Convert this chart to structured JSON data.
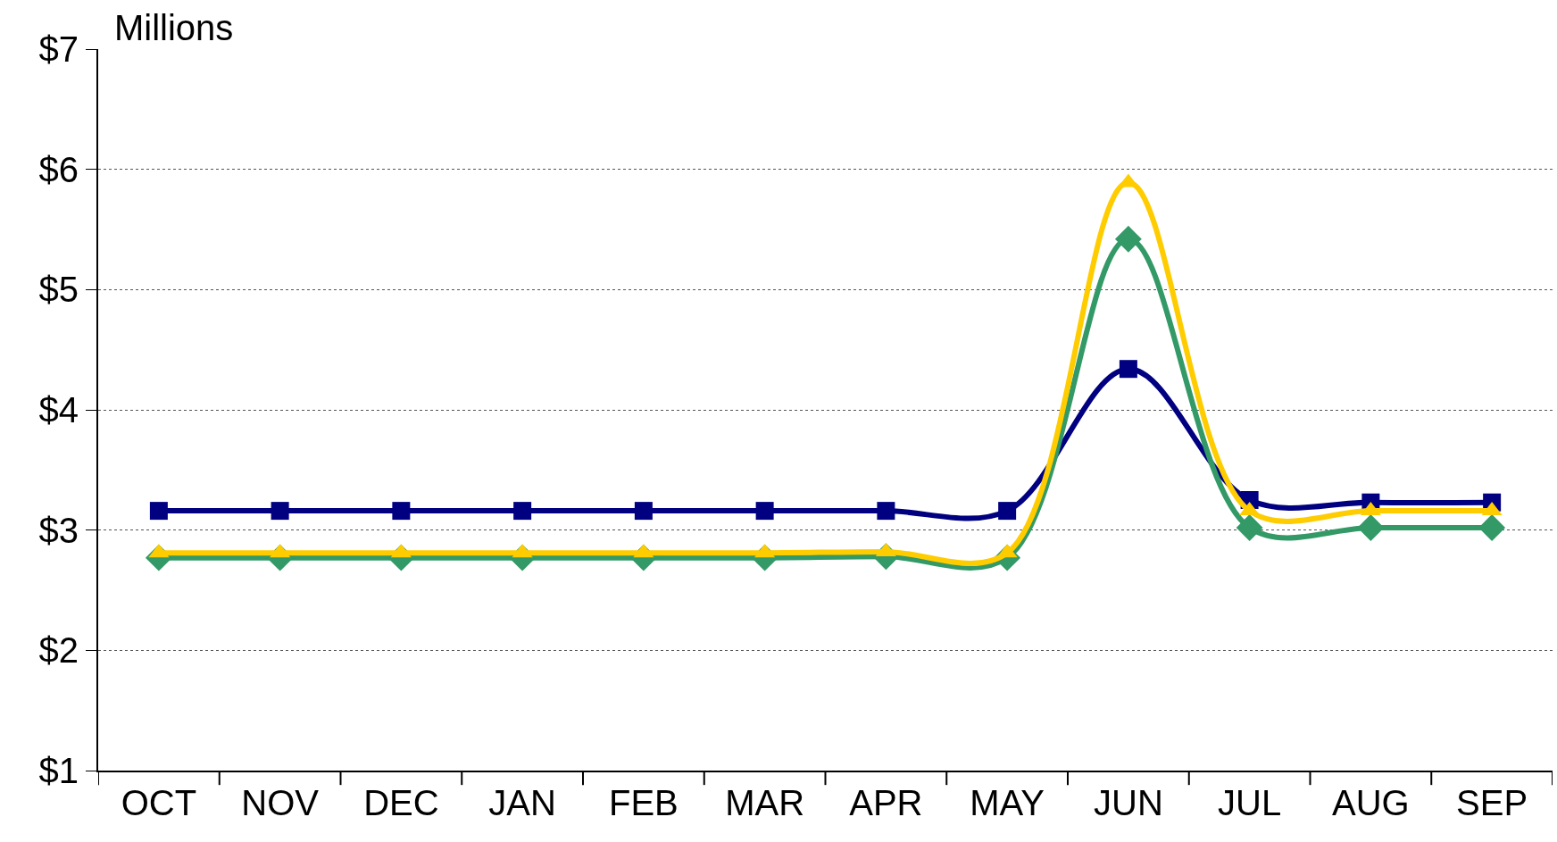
{
  "chart_data": {
    "type": "line",
    "annotations": [
      "Millions"
    ],
    "categories": [
      "OCT",
      "NOV",
      "DEC",
      "JAN",
      "FEB",
      "MAR",
      "APR",
      "MAY",
      "JUN",
      "JUL",
      "AUG",
      "SEP"
    ],
    "series": [
      {
        "color": "#000080",
        "marker": "square",
        "values": [
          3.16,
          3.16,
          3.16,
          3.16,
          3.16,
          3.16,
          3.16,
          3.16,
          4.34,
          3.25,
          3.23,
          3.23
        ]
      },
      {
        "color": "#339966",
        "marker": "diamond",
        "values": [
          2.77,
          2.77,
          2.77,
          2.77,
          2.77,
          2.77,
          2.78,
          2.77,
          5.42,
          3.02,
          3.02,
          3.02
        ]
      },
      {
        "color": "#ffcc00",
        "marker": "triangle",
        "values": [
          2.81,
          2.81,
          2.81,
          2.81,
          2.81,
          2.81,
          2.82,
          2.81,
          5.89,
          3.16,
          3.16,
          3.16
        ]
      }
    ],
    "ylim": [
      1,
      7
    ],
    "yticks": [
      {
        "value": 1,
        "label": "$1"
      },
      {
        "value": 2,
        "label": "$2"
      },
      {
        "value": 3,
        "label": "$3"
      },
      {
        "value": 4,
        "label": "$4"
      },
      {
        "value": 5,
        "label": "$5"
      },
      {
        "value": 6,
        "label": "$6"
      },
      {
        "value": 7,
        "label": "$7"
      }
    ],
    "grid": "y",
    "legend": false
  }
}
